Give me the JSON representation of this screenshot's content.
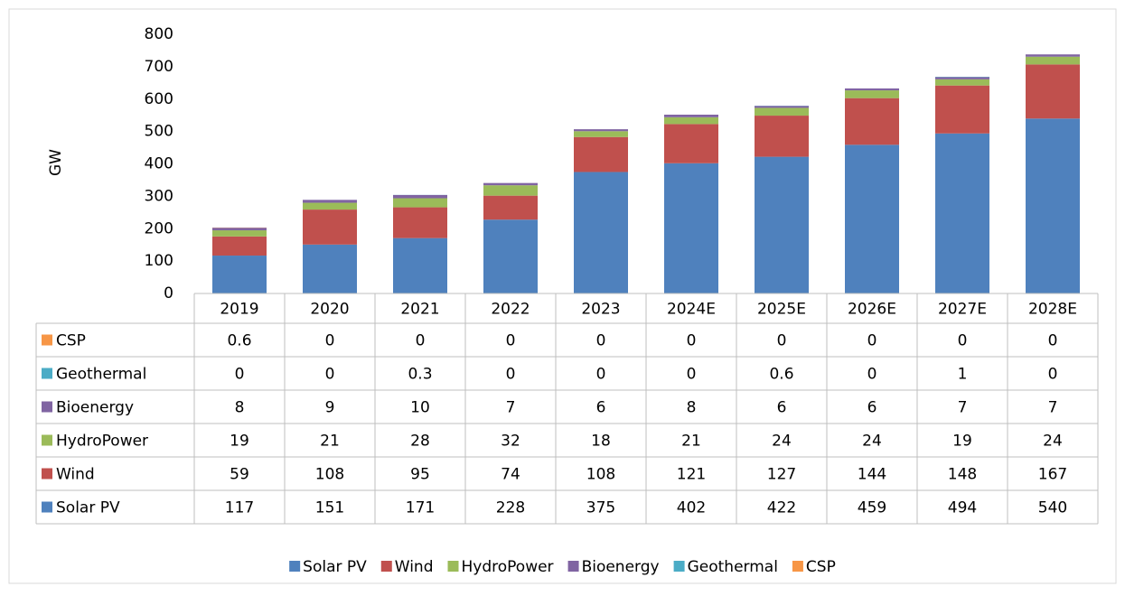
{
  "chart_data": {
    "type": "stacked_bar",
    "y_label": "GW",
    "categories": [
      "2019",
      "2020",
      "2021",
      "2022",
      "2023",
      "2024E",
      "2025E",
      "2026E",
      "2027E",
      "2028E"
    ],
    "series": [
      {
        "name": "Solar PV",
        "color": "#4f81bd",
        "values": [
          117,
          151,
          171,
          228,
          375,
          402,
          422,
          459,
          494,
          540
        ]
      },
      {
        "name": "Wind",
        "color": "#c0504d",
        "values": [
          59,
          108,
          95,
          74,
          108,
          121,
          127,
          144,
          148,
          167
        ]
      },
      {
        "name": "HydroPower",
        "color": "#9bbb59",
        "values": [
          19,
          21,
          28,
          32,
          18,
          21,
          24,
          24,
          19,
          24
        ]
      },
      {
        "name": "Bioenergy",
        "color": "#8064a2",
        "values": [
          8,
          9,
          10,
          7,
          6,
          8,
          6,
          6,
          7,
          7
        ]
      },
      {
        "name": "Geothermal",
        "color": "#4bacc6",
        "values": [
          0,
          0,
          0.3,
          0,
          0,
          0,
          0.6,
          0,
          1,
          0
        ]
      },
      {
        "name": "CSP",
        "color": "#f79646",
        "values": [
          0.6,
          0,
          0,
          0,
          0,
          0,
          0,
          0,
          0,
          0
        ]
      }
    ],
    "ylim": [
      0,
      800
    ],
    "yticks": [
      0,
      100,
      200,
      300,
      400,
      500,
      600,
      700,
      800
    ],
    "legend": "bottom",
    "data_table": true
  }
}
